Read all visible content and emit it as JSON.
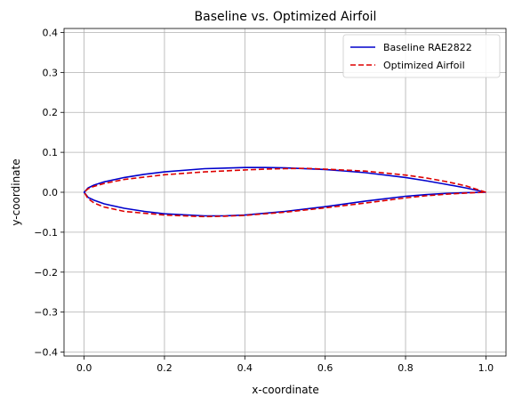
{
  "chart_data": {
    "type": "line",
    "title": "Baseline vs. Optimized Airfoil",
    "xlabel": "x-coordinate",
    "ylabel": "y-coordinate",
    "xlim": [
      -0.05,
      1.05
    ],
    "ylim": [
      -0.41,
      0.41
    ],
    "xticks": [
      "0.0",
      "0.2",
      "0.4",
      "0.6",
      "0.8",
      "1.0"
    ],
    "yticks": [
      "−0.4",
      "−0.3",
      "−0.2",
      "−0.1",
      "0.0",
      "0.1",
      "0.2",
      "0.3",
      "0.4"
    ],
    "grid": true,
    "legend_position": "top-right",
    "series": [
      {
        "name": "Baseline RAE2822",
        "color": "#0000cc",
        "style": "solid",
        "x": [
          1.0,
          0.95,
          0.9,
          0.85,
          0.8,
          0.7,
          0.6,
          0.5,
          0.45,
          0.4,
          0.3,
          0.2,
          0.15,
          0.1,
          0.05,
          0.025,
          0.01,
          0.0,
          0.01,
          0.025,
          0.05,
          0.1,
          0.15,
          0.2,
          0.3,
          0.35,
          0.4,
          0.5,
          0.6,
          0.7,
          0.8,
          0.85,
          0.9,
          0.95,
          1.0
        ],
        "y": [
          0.0,
          0.011,
          0.02,
          0.029,
          0.037,
          0.049,
          0.057,
          0.061,
          0.062,
          0.062,
          0.059,
          0.051,
          0.045,
          0.037,
          0.026,
          0.018,
          0.011,
          0.0,
          -0.013,
          -0.02,
          -0.029,
          -0.04,
          -0.048,
          -0.054,
          -0.059,
          -0.059,
          -0.057,
          -0.048,
          -0.036,
          -0.022,
          -0.01,
          -0.006,
          -0.003,
          -0.001,
          0.0
        ]
      },
      {
        "name": "Optimized Airfoil",
        "color": "#dd0000",
        "style": "dashed",
        "x": [
          1.0,
          0.95,
          0.9,
          0.85,
          0.8,
          0.7,
          0.6,
          0.55,
          0.5,
          0.45,
          0.4,
          0.3,
          0.2,
          0.1,
          0.05,
          0.025,
          0.01,
          0.0,
          0.01,
          0.025,
          0.05,
          0.1,
          0.2,
          0.3,
          0.35,
          0.4,
          0.5,
          0.6,
          0.7,
          0.8,
          0.85,
          0.9,
          0.95,
          1.0
        ],
        "y": [
          0.0,
          0.016,
          0.027,
          0.036,
          0.043,
          0.053,
          0.058,
          0.06,
          0.059,
          0.058,
          0.056,
          0.051,
          0.044,
          0.032,
          0.022,
          0.015,
          0.009,
          0.0,
          -0.016,
          -0.027,
          -0.037,
          -0.048,
          -0.057,
          -0.061,
          -0.06,
          -0.058,
          -0.05,
          -0.039,
          -0.027,
          -0.014,
          -0.009,
          -0.005,
          -0.002,
          0.0
        ]
      }
    ]
  }
}
